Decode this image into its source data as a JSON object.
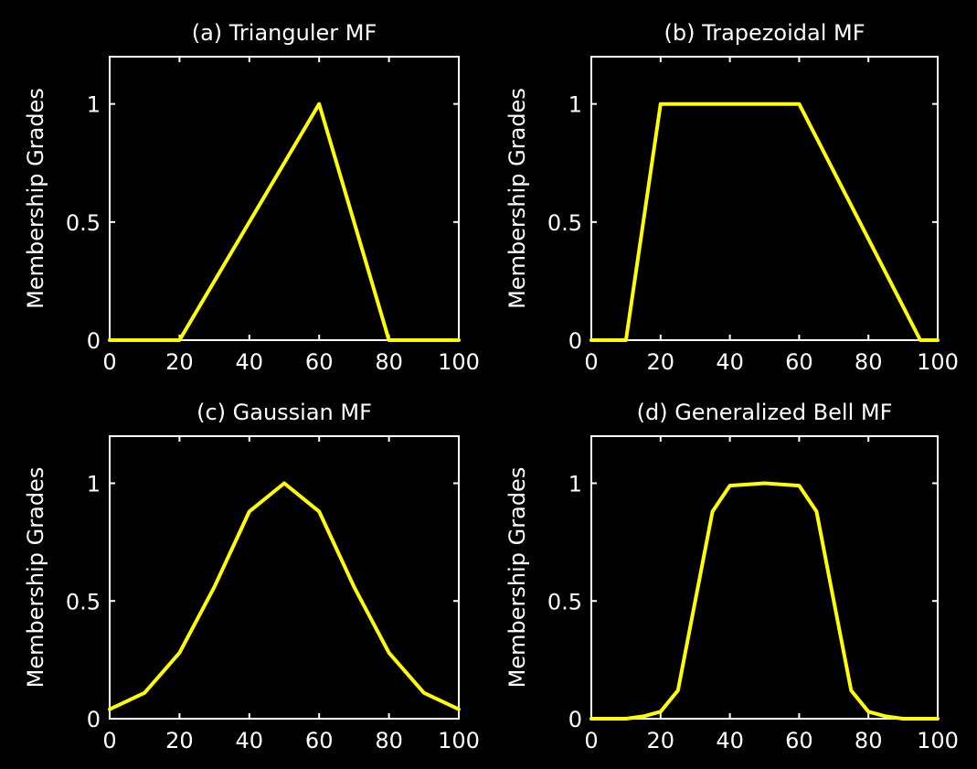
{
  "chart_data": [
    {
      "type": "line",
      "title": "(a) Trianguler MF",
      "xlabel": "",
      "ylabel": "Membership Grades",
      "xlim": [
        0,
        100
      ],
      "ylim": [
        0,
        1.2
      ],
      "xticks": [
        "0",
        "20",
        "40",
        "60",
        "80",
        "100"
      ],
      "yticks": [
        "0",
        "0.5",
        "1"
      ],
      "x": [
        0,
        20,
        60,
        80,
        100
      ],
      "values": [
        0,
        0,
        1,
        0,
        0
      ]
    },
    {
      "type": "line",
      "title": "(b) Trapezoidal MF",
      "xlabel": "",
      "ylabel": "Membership Grades",
      "xlim": [
        0,
        100
      ],
      "ylim": [
        0,
        1.2
      ],
      "xticks": [
        "0",
        "20",
        "40",
        "60",
        "80",
        "100"
      ],
      "yticks": [
        "0",
        "0.5",
        "1"
      ],
      "x": [
        0,
        10,
        20,
        60,
        95,
        100
      ],
      "values": [
        0,
        0,
        1,
        1,
        0,
        0
      ]
    },
    {
      "type": "line",
      "title": "(c) Gaussian MF",
      "xlabel": "",
      "ylabel": "Membership Grades",
      "xlim": [
        0,
        100
      ],
      "ylim": [
        0,
        1.2
      ],
      "xticks": [
        "0",
        "20",
        "40",
        "60",
        "80",
        "100"
      ],
      "yticks": [
        "0",
        "0.5",
        "1"
      ],
      "x": [
        0,
        10,
        20,
        30,
        40,
        50,
        60,
        70,
        80,
        90,
        100
      ],
      "values": [
        0.04,
        0.11,
        0.28,
        0.56,
        0.88,
        1,
        0.88,
        0.56,
        0.28,
        0.11,
        0.04
      ]
    },
    {
      "type": "line",
      "title": "(d) Generalized Bell MF",
      "xlabel": "",
      "ylabel": "Membership Grades",
      "xlim": [
        0,
        100
      ],
      "ylim": [
        0,
        1.2
      ],
      "xticks": [
        "0",
        "20",
        "40",
        "60",
        "80",
        "100"
      ],
      "yticks": [
        "0",
        "0.5",
        "1"
      ],
      "x": [
        0,
        10,
        15,
        20,
        25,
        30,
        35,
        40,
        50,
        60,
        65,
        70,
        75,
        80,
        85,
        90,
        100
      ],
      "values": [
        0,
        0,
        0.01,
        0.03,
        0.12,
        0.5,
        0.88,
        0.99,
        1,
        0.99,
        0.88,
        0.5,
        0.12,
        0.03,
        0.01,
        0,
        0
      ]
    }
  ],
  "colors": {
    "background": "#000000",
    "axes": "#ffffff",
    "curve": "#ffff00"
  }
}
